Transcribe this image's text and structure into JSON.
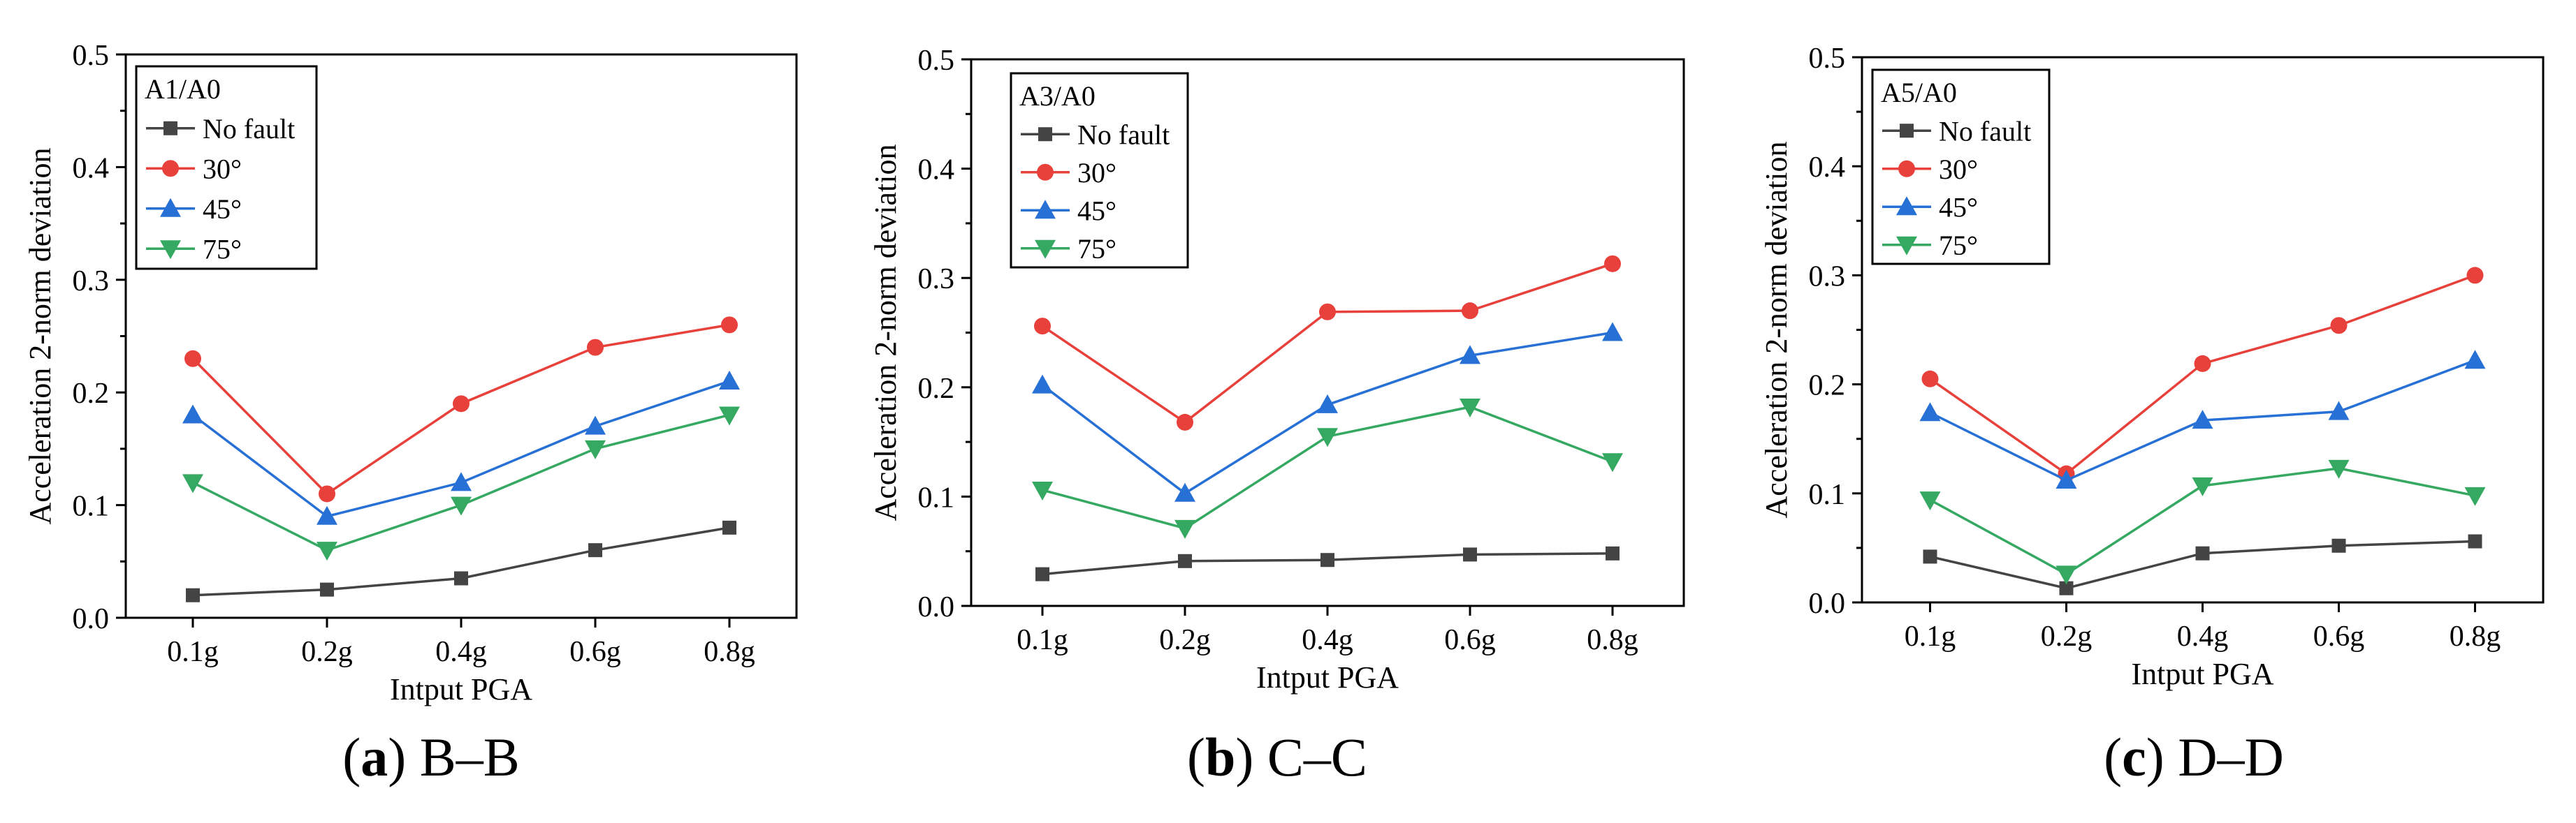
{
  "chart_data": [
    {
      "type": "line",
      "panel_label": "a",
      "caption": "B–B",
      "legend_title": "A1/A0",
      "legend_position": "top-left",
      "xlabel": "Intput PGA",
      "ylabel": "Acceleration 2-norm deviation",
      "categories": [
        "0.1g",
        "0.2g",
        "0.4g",
        "0.6g",
        "0.8g"
      ],
      "ylim": [
        0,
        0.5
      ],
      "yticks": [
        "0.0",
        "0.1",
        "0.2",
        "0.3",
        "0.4",
        "0.5"
      ],
      "grid": false,
      "series": [
        {
          "name": "No fault",
          "color": "#444444",
          "marker": "square",
          "values": [
            0.02,
            0.025,
            0.035,
            0.06,
            0.08
          ]
        },
        {
          "name": "30°",
          "color": "#e8403a",
          "marker": "circle",
          "values": [
            0.23,
            0.11,
            0.19,
            0.24,
            0.26
          ]
        },
        {
          "name": "45°",
          "color": "#2770d6",
          "marker": "triangle-up",
          "values": [
            0.18,
            0.09,
            0.12,
            0.17,
            0.21
          ]
        },
        {
          "name": "75°",
          "color": "#35a862",
          "marker": "triangle-down",
          "values": [
            0.12,
            0.06,
            0.1,
            0.15,
            0.18
          ]
        }
      ]
    },
    {
      "type": "line",
      "panel_label": "b",
      "caption": "C–C",
      "legend_title": "A3/A0",
      "legend_position": "top-left",
      "xlabel": "Intput PGA",
      "ylabel": "Acceleration 2-norm deviation",
      "categories": [
        "0.1g",
        "0.2g",
        "0.4g",
        "0.6g",
        "0.8g"
      ],
      "ylim": [
        0,
        0.5
      ],
      "yticks": [
        "0.0",
        "0.1",
        "0.2",
        "0.3",
        "0.4",
        "0.5"
      ],
      "grid": false,
      "series": [
        {
          "name": "No fault",
          "color": "#444444",
          "marker": "square",
          "values": [
            0.029,
            0.041,
            0.042,
            0.047,
            0.048
          ]
        },
        {
          "name": "30°",
          "color": "#e8403a",
          "marker": "circle",
          "values": [
            0.256,
            0.168,
            0.269,
            0.27,
            0.313
          ]
        },
        {
          "name": "45°",
          "color": "#2770d6",
          "marker": "triangle-up",
          "values": [
            0.202,
            0.103,
            0.184,
            0.229,
            0.25
          ]
        },
        {
          "name": "75°",
          "color": "#35a862",
          "marker": "triangle-down",
          "values": [
            0.106,
            0.071,
            0.155,
            0.182,
            0.132
          ]
        }
      ]
    },
    {
      "type": "line",
      "panel_label": "c",
      "caption": "D–D",
      "legend_title": "A5/A0",
      "legend_position": "top-left",
      "xlabel": "Intput PGA",
      "ylabel": "Acceleration 2-norm deviation",
      "categories": [
        "0.1g",
        "0.2g",
        "0.4g",
        "0.6g",
        "0.8g"
      ],
      "ylim": [
        0,
        0.5
      ],
      "yticks": [
        "0.0",
        "0.1",
        "0.2",
        "0.3",
        "0.4",
        "0.5"
      ],
      "grid": false,
      "series": [
        {
          "name": "No fault",
          "color": "#444444",
          "marker": "square",
          "values": [
            0.042,
            0.013,
            0.045,
            0.052,
            0.056
          ]
        },
        {
          "name": "30°",
          "color": "#e8403a",
          "marker": "circle",
          "values": [
            0.205,
            0.118,
            0.219,
            0.254,
            0.3
          ]
        },
        {
          "name": "45°",
          "color": "#2770d6",
          "marker": "triangle-up",
          "values": [
            0.174,
            0.112,
            0.167,
            0.175,
            0.222
          ]
        },
        {
          "name": "75°",
          "color": "#35a862",
          "marker": "triangle-down",
          "values": [
            0.094,
            0.026,
            0.107,
            0.123,
            0.098
          ]
        }
      ]
    }
  ]
}
